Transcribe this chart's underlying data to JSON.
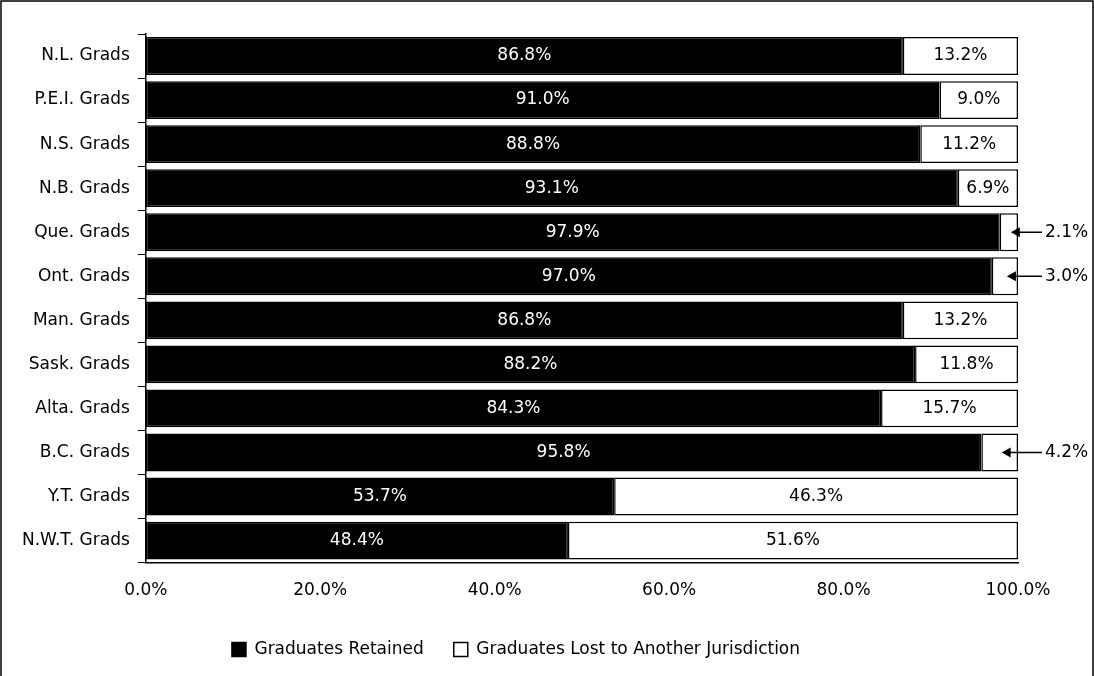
{
  "chart_data": {
    "type": "bar",
    "orientation": "horizontal",
    "stacked": true,
    "categories": [
      "N.L. Grads",
      "P.E.I. Grads",
      "N.S. Grads",
      "N.B. Grads",
      "Que. Grads",
      "Ont. Grads",
      "Man. Grads",
      "Sask. Grads",
      "Alta. Grads",
      "B.C. Grads",
      "Y.T. Grads",
      "N.W.T. Grads"
    ],
    "series": [
      {
        "name": "Graduates Retained",
        "color": "#000000",
        "values": [
          86.8,
          91.0,
          88.8,
          93.1,
          97.9,
          97.0,
          86.8,
          88.2,
          84.3,
          95.8,
          53.7,
          48.4
        ],
        "value_labels": [
          "86.8%",
          "91.0%",
          "88.8%",
          "93.1%",
          "97.9%",
          "97.0%",
          "86.8%",
          "88.2%",
          "84.3%",
          "95.8%",
          "53.7%",
          "48.4%"
        ]
      },
      {
        "name": "Graduates Lost to Another Jurisdiction",
        "color": "#ffffff",
        "values": [
          13.2,
          9.0,
          11.2,
          6.9,
          2.1,
          3.0,
          13.2,
          11.8,
          15.7,
          4.2,
          46.3,
          51.6
        ],
        "value_labels": [
          "13.2%",
          "9.0%",
          "11.2%",
          "6.9%",
          "2.1%",
          "3.0%",
          "13.2%",
          "11.8%",
          "15.7%",
          "4.2%",
          "46.3%",
          "51.6%"
        ]
      }
    ],
    "xlim": [
      0,
      100
    ],
    "xticks": [
      {
        "value": 0,
        "label": "0.0%"
      },
      {
        "value": 20,
        "label": "20.0%"
      },
      {
        "value": 40,
        "label": "40.0%"
      },
      {
        "value": 60,
        "label": "60.0%"
      },
      {
        "value": 80,
        "label": "80.0%"
      },
      {
        "value": 100,
        "label": "100.0%"
      }
    ],
    "grid": false,
    "legend": "bottom"
  }
}
